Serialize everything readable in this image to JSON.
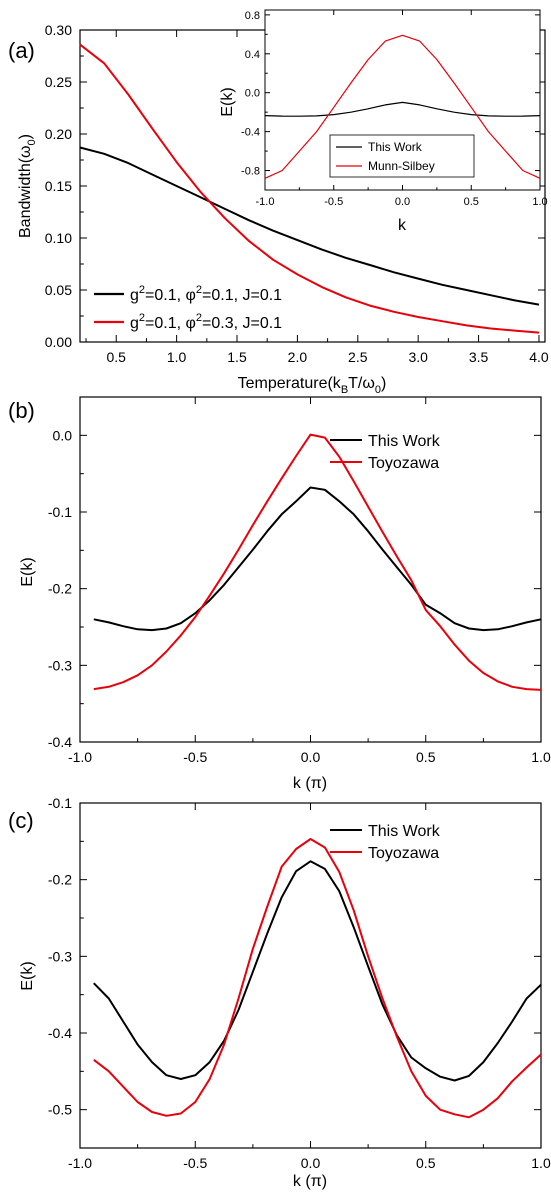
{
  "panel_labels": [
    "(a)",
    "(b)",
    "(c)"
  ],
  "colors": {
    "this_work": "#000000",
    "other": "#e8000b"
  },
  "chart_data": [
    {
      "id": "a",
      "type": "line",
      "xlabel": "Temperature(k",
      "xlabel_sub1": "B",
      "xlabel_mid": "T/ω",
      "xlabel_sub2": "0",
      "xlabel_end": ")",
      "ylabel": "Bandwidth(ω",
      "ylabel_sub": "0",
      "ylabel_end": ")",
      "xlim": [
        0.2,
        4.05
      ],
      "ylim": [
        0.0,
        0.3
      ],
      "xticks": [
        0.5,
        1.0,
        1.5,
        2.0,
        2.5,
        3.0,
        3.5,
        4.0
      ],
      "xtick_labels": [
        "0.5",
        "1.0",
        "1.5",
        "2.0",
        "2.5",
        "3.0",
        "3.5",
        "4.0"
      ],
      "yticks": [
        0.0,
        0.05,
        0.1,
        0.15,
        0.2,
        0.25,
        0.3
      ],
      "ytick_labels": [
        "0.00",
        "0.05",
        "0.10",
        "0.15",
        "0.20",
        "0.25",
        "0.30"
      ],
      "legend": [
        {
          "g": "g",
          "g_sup": "2",
          "mid": "=0.1, φ",
          "p_sup": "2",
          "end": "=0.1, J=0.1"
        },
        {
          "g": "g",
          "g_sup": "2",
          "mid": "=0.1, φ",
          "p_sup": "2",
          "end": "=0.3, J=0.1"
        }
      ],
      "series": [
        {
          "color_key": "this_work",
          "x": [
            0.2,
            0.4,
            0.6,
            0.8,
            1.0,
            1.2,
            1.4,
            1.6,
            1.8,
            2.0,
            2.2,
            2.4,
            2.6,
            2.8,
            3.0,
            3.2,
            3.4,
            3.6,
            3.8,
            4.0
          ],
          "y": [
            0.187,
            0.181,
            0.172,
            0.161,
            0.15,
            0.139,
            0.128,
            0.117,
            0.107,
            0.098,
            0.089,
            0.081,
            0.074,
            0.067,
            0.061,
            0.055,
            0.05,
            0.045,
            0.04,
            0.036
          ]
        },
        {
          "color_key": "other",
          "x": [
            0.2,
            0.4,
            0.6,
            0.8,
            1.0,
            1.2,
            1.4,
            1.6,
            1.8,
            2.0,
            2.2,
            2.4,
            2.6,
            2.8,
            3.0,
            3.2,
            3.4,
            3.6,
            3.8,
            4.0
          ],
          "y": [
            0.286,
            0.268,
            0.238,
            0.205,
            0.173,
            0.144,
            0.119,
            0.097,
            0.079,
            0.065,
            0.053,
            0.043,
            0.035,
            0.029,
            0.024,
            0.02,
            0.016,
            0.013,
            0.011,
            0.009
          ]
        }
      ],
      "inset": {
        "type": "line",
        "xlabel": "k",
        "ylabel": "E(k)",
        "xlim": [
          -1.0,
          1.0
        ],
        "ylim": [
          -1.0,
          0.85
        ],
        "xticks": [
          -1.0,
          -0.5,
          0.0,
          0.5,
          1.0
        ],
        "xtick_labels": [
          "-1.0",
          "-0.5",
          "0.0",
          "0.5",
          "1.0"
        ],
        "yticks": [
          -0.8,
          -0.4,
          0.0,
          0.4,
          0.8
        ],
        "ytick_labels": [
          "-0.8",
          "-0.4",
          "0.0",
          "0.4",
          "0.8"
        ],
        "legend": [
          "This Work",
          "Munn-Silbey"
        ],
        "series": [
          {
            "name": "This Work",
            "color_key": "this_work",
            "x": [
              -1.0,
              -0.875,
              -0.75,
              -0.625,
              -0.5,
              -0.375,
              -0.25,
              -0.125,
              0.0,
              0.125,
              0.25,
              0.375,
              0.5,
              0.625,
              0.75,
              0.875,
              1.0
            ],
            "y": [
              -0.235,
              -0.24,
              -0.242,
              -0.238,
              -0.225,
              -0.2,
              -0.165,
              -0.125,
              -0.1,
              -0.125,
              -0.165,
              -0.2,
              -0.225,
              -0.238,
              -0.242,
              -0.24,
              -0.235
            ]
          },
          {
            "name": "Munn-Silbey",
            "color_key": "other",
            "x": [
              -1.0,
              -0.875,
              -0.75,
              -0.625,
              -0.5,
              -0.375,
              -0.25,
              -0.125,
              0.0,
              0.125,
              0.25,
              0.375,
              0.5,
              0.625,
              0.75,
              0.875,
              1.0
            ],
            "y": [
              -0.88,
              -0.8,
              -0.6,
              -0.4,
              -0.15,
              0.1,
              0.34,
              0.53,
              0.59,
              0.53,
              0.34,
              0.1,
              -0.15,
              -0.4,
              -0.6,
              -0.8,
              -0.88
            ]
          }
        ]
      }
    },
    {
      "id": "b",
      "type": "line",
      "xlabel": "k (π)",
      "ylabel": "E(k)",
      "xlim": [
        -1.0,
        1.0
      ],
      "ylim": [
        -0.4,
        0.05
      ],
      "xticks": [
        -1.0,
        -0.5,
        0.0,
        0.5,
        1.0
      ],
      "xtick_labels": [
        "-1.0",
        "-0.5",
        "0.0",
        "0.5",
        "1.0"
      ],
      "yticks": [
        -0.4,
        -0.3,
        -0.2,
        -0.1,
        0.0
      ],
      "ytick_labels": [
        "-0.4",
        "-0.3",
        "-0.2",
        "-0.1",
        "0.0"
      ],
      "legend": [
        "This Work",
        "Toyozawa"
      ],
      "series": [
        {
          "name": "This Work",
          "color_key": "this_work",
          "x": [
            -0.94,
            -0.875,
            -0.8125,
            -0.75,
            -0.6875,
            -0.625,
            -0.5625,
            -0.5,
            -0.4375,
            -0.375,
            -0.3125,
            -0.25,
            -0.1875,
            -0.125,
            -0.0625,
            0.0,
            0.0625,
            0.125,
            0.1875,
            0.25,
            0.3125,
            0.375,
            0.4375,
            0.5,
            0.5625,
            0.625,
            0.6875,
            0.75,
            0.8125,
            0.875,
            0.9375,
            1.0
          ],
          "y": [
            -0.24,
            -0.244,
            -0.249,
            -0.253,
            -0.254,
            -0.252,
            -0.245,
            -0.232,
            -0.215,
            -0.195,
            -0.172,
            -0.149,
            -0.125,
            -0.103,
            -0.086,
            -0.068,
            -0.071,
            -0.086,
            -0.103,
            -0.125,
            -0.149,
            -0.172,
            -0.195,
            -0.221,
            -0.232,
            -0.245,
            -0.252,
            -0.254,
            -0.253,
            -0.249,
            -0.244,
            -0.24
          ]
        },
        {
          "name": "Toyozawa",
          "color_key": "other",
          "x": [
            -0.94,
            -0.875,
            -0.8125,
            -0.75,
            -0.6875,
            -0.625,
            -0.5625,
            -0.5,
            -0.4375,
            -0.375,
            -0.3125,
            -0.25,
            -0.1875,
            -0.125,
            -0.0625,
            0.0,
            0.0625,
            0.125,
            0.1875,
            0.25,
            0.3125,
            0.375,
            0.4375,
            0.5,
            0.5625,
            0.625,
            0.6875,
            0.75,
            0.8125,
            0.875,
            0.9375,
            1.0
          ],
          "y": [
            -0.331,
            -0.328,
            -0.322,
            -0.313,
            -0.3,
            -0.282,
            -0.261,
            -0.237,
            -0.209,
            -0.18,
            -0.149,
            -0.117,
            -0.086,
            -0.056,
            -0.027,
            0.001,
            -0.003,
            -0.028,
            -0.06,
            -0.093,
            -0.126,
            -0.158,
            -0.189,
            -0.228,
            -0.249,
            -0.273,
            -0.294,
            -0.31,
            -0.321,
            -0.328,
            -0.331,
            -0.332
          ]
        }
      ]
    },
    {
      "id": "c",
      "type": "line",
      "xlabel": "k (π)",
      "ylabel": "E(k)",
      "xlim": [
        -1.0,
        1.0
      ],
      "ylim": [
        -0.55,
        -0.1
      ],
      "xticks": [
        -1.0,
        -0.5,
        0.0,
        0.5,
        1.0
      ],
      "xtick_labels": [
        "-1.0",
        "-0.5",
        "0.0",
        "0.5",
        "1.0"
      ],
      "yticks": [
        -0.5,
        -0.4,
        -0.3,
        -0.2,
        -0.1
      ],
      "ytick_labels": [
        "-0.5",
        "-0.4",
        "-0.3",
        "-0.2",
        "-0.1"
      ],
      "legend": [
        "This Work",
        "Toyozawa"
      ],
      "series": [
        {
          "name": "This Work",
          "color_key": "this_work",
          "x": [
            -0.94,
            -0.875,
            -0.8125,
            -0.75,
            -0.6875,
            -0.625,
            -0.5625,
            -0.5,
            -0.4375,
            -0.375,
            -0.3125,
            -0.25,
            -0.1875,
            -0.125,
            -0.0625,
            0.0,
            0.0625,
            0.125,
            0.1875,
            0.25,
            0.3125,
            0.375,
            0.4375,
            0.5,
            0.5625,
            0.625,
            0.6875,
            0.75,
            0.8125,
            0.875,
            0.9375,
            1.0
          ],
          "y": [
            -0.335,
            -0.355,
            -0.385,
            -0.415,
            -0.438,
            -0.455,
            -0.46,
            -0.455,
            -0.438,
            -0.41,
            -0.37,
            -0.32,
            -0.27,
            -0.223,
            -0.189,
            -0.176,
            -0.186,
            -0.215,
            -0.262,
            -0.313,
            -0.363,
            -0.403,
            -0.432,
            -0.446,
            -0.457,
            -0.462,
            -0.456,
            -0.438,
            -0.413,
            -0.385,
            -0.355,
            -0.337
          ]
        },
        {
          "name": "Toyozawa",
          "color_key": "other",
          "x": [
            -0.94,
            -0.875,
            -0.8125,
            -0.75,
            -0.6875,
            -0.625,
            -0.5625,
            -0.5,
            -0.4375,
            -0.375,
            -0.3125,
            -0.25,
            -0.1875,
            -0.125,
            -0.0625,
            0.0,
            0.0625,
            0.125,
            0.1875,
            0.25,
            0.3125,
            0.375,
            0.4375,
            0.5,
            0.5625,
            0.625,
            0.6875,
            0.75,
            0.8125,
            0.875,
            0.9375,
            1.0
          ],
          "y": [
            -0.435,
            -0.45,
            -0.47,
            -0.49,
            -0.503,
            -0.508,
            -0.505,
            -0.49,
            -0.46,
            -0.415,
            -0.355,
            -0.29,
            -0.235,
            -0.183,
            -0.16,
            -0.147,
            -0.158,
            -0.19,
            -0.24,
            -0.3,
            -0.355,
            -0.405,
            -0.45,
            -0.482,
            -0.5,
            -0.506,
            -0.51,
            -0.5,
            -0.485,
            -0.463,
            -0.445,
            -0.428
          ]
        }
      ]
    }
  ]
}
